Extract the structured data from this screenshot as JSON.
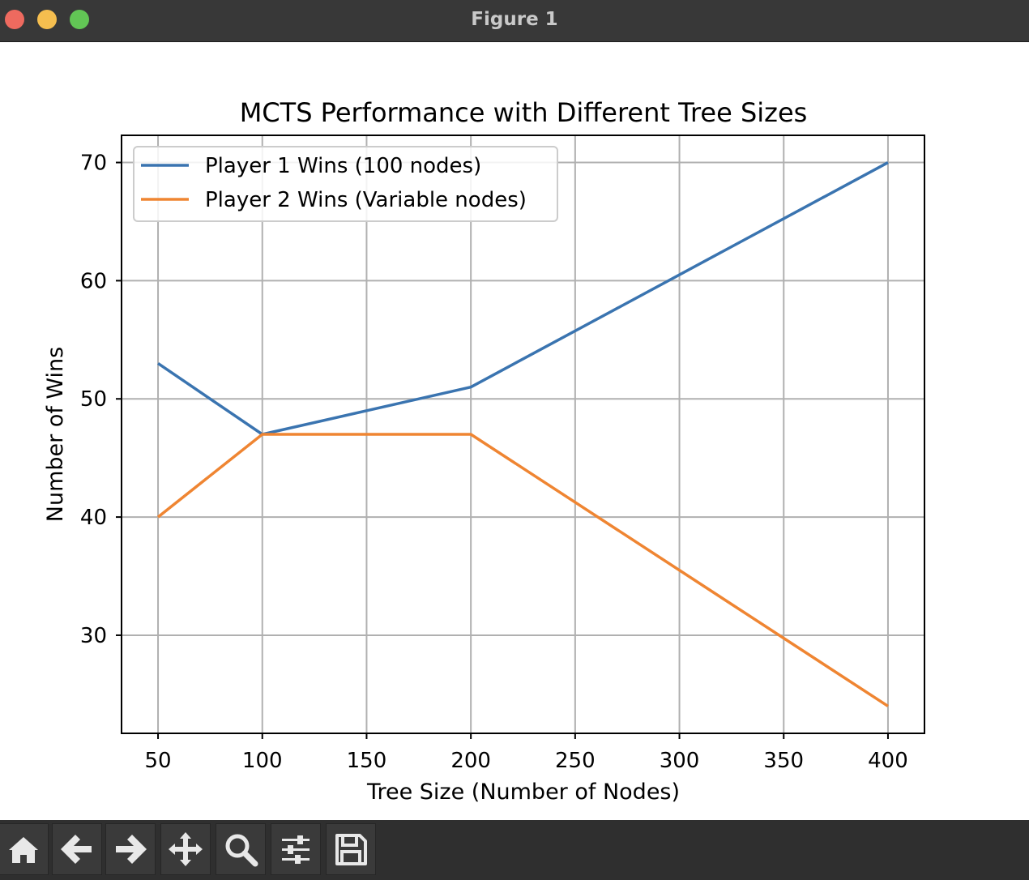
{
  "window": {
    "title": "Figure 1"
  },
  "toolbar": {
    "buttons": [
      {
        "name": "home-icon"
      },
      {
        "name": "back-icon"
      },
      {
        "name": "forward-icon"
      },
      {
        "name": "pan-icon"
      },
      {
        "name": "zoom-icon"
      },
      {
        "name": "configure-subplots-icon"
      },
      {
        "name": "save-icon"
      }
    ]
  },
  "chart_data": {
    "type": "line",
    "title": "MCTS Performance with Different Tree Sizes",
    "xlabel": "Tree Size (Number of Nodes)",
    "ylabel": "Number of Wins",
    "x": [
      50,
      100,
      200,
      400
    ],
    "series": [
      {
        "name": "Player 1 Wins (100 nodes)",
        "values": [
          53,
          47,
          51,
          70
        ],
        "color": "#3a74b0"
      },
      {
        "name": "Player 2 Wins (Variable nodes)",
        "values": [
          40,
          47,
          47,
          24
        ],
        "color": "#ef8532"
      }
    ],
    "xticks": [
      "50",
      "100",
      "150",
      "200",
      "250",
      "300",
      "350",
      "400"
    ],
    "yticks": [
      "30",
      "40",
      "50",
      "60",
      "70"
    ],
    "xlim": [
      32.5,
      417.5
    ],
    "ylim": [
      21.7,
      72.3
    ],
    "grid": true,
    "legend": "top-left"
  }
}
